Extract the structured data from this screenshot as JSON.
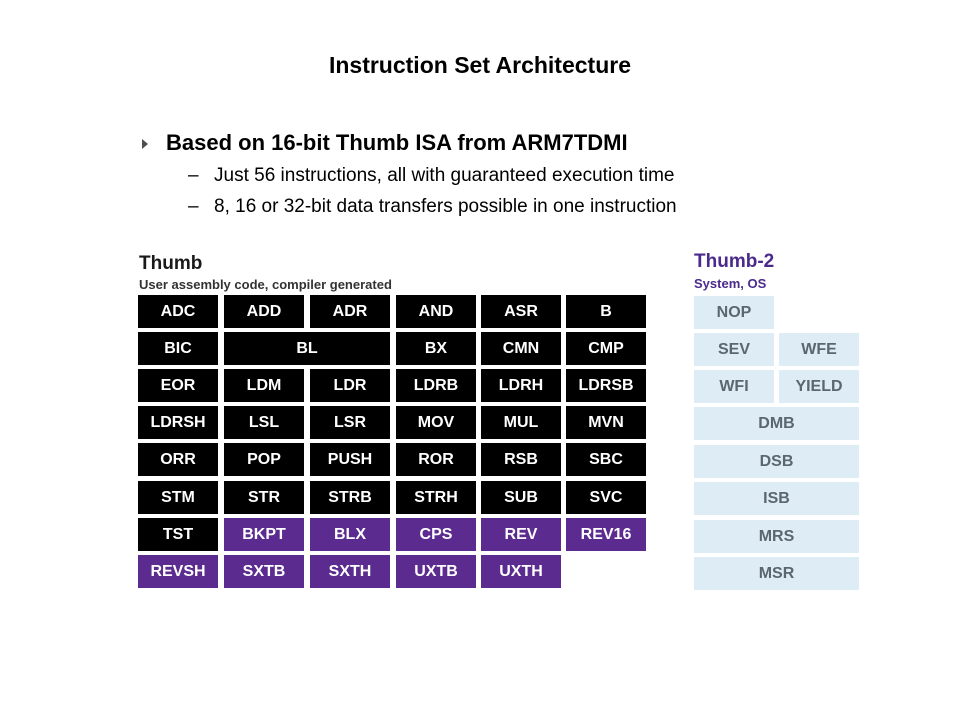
{
  "slide": {
    "title": "Instruction Set Architecture",
    "bullet": "Based on 16-bit Thumb ISA from ARM7TDMI",
    "sub_bullets": [
      "Just 56 instructions, all with guaranteed execution time",
      "8, 16 or 32-bit data transfers possible in one instruction"
    ],
    "dash": "–"
  },
  "thumb": {
    "title": "Thumb",
    "subtitle": "User assembly code, compiler generated",
    "colors": {
      "original": "#000000",
      "added": "#5b2b8f"
    },
    "rows": [
      [
        "ADC",
        "ADD",
        "ADR",
        "AND",
        "ASR",
        "B"
      ],
      [
        "BIC",
        "BL",
        "BX",
        "CMN",
        "CMP"
      ],
      [
        "EOR",
        "LDM",
        "LDR",
        "LDRB",
        "LDRH",
        "LDRSB"
      ],
      [
        "LDRSH",
        "LSL",
        "LSR",
        "MOV",
        "MUL",
        "MVN"
      ],
      [
        "ORR",
        "POP",
        "PUSH",
        "ROR",
        "RSB",
        "SBC"
      ],
      [
        "STM",
        "STR",
        "STRB",
        "STRH",
        "SUB",
        "SVC"
      ],
      [
        "TST",
        "BKPT",
        "BLX",
        "CPS",
        "REV",
        "REV16"
      ],
      [
        "REVSH",
        "SXTB",
        "SXTH",
        "UXTB",
        "UXTH"
      ]
    ]
  },
  "thumb2": {
    "title": "Thumb-2",
    "subtitle": "System, OS",
    "color": "#ddecf5",
    "rows": [
      [
        "NOP"
      ],
      [
        "SEV",
        "WFE"
      ],
      [
        "WFI",
        "YIELD"
      ],
      [
        "DMB"
      ],
      [
        "DSB"
      ],
      [
        "ISB"
      ],
      [
        "MRS"
      ],
      [
        "MSR"
      ]
    ]
  }
}
